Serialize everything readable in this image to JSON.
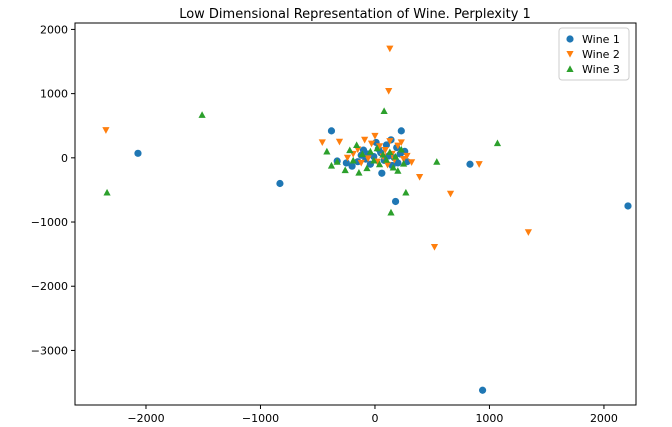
{
  "chart_data": {
    "type": "scatter",
    "title": "Low Dimensional Representation of Wine. Perplexity 1",
    "xlabel": "",
    "ylabel": "",
    "xlim": [
      -2620,
      2280
    ],
    "ylim": [
      -3850,
      2100
    ],
    "xticks": [
      -2000,
      -1000,
      0,
      1000,
      2000
    ],
    "yticks": [
      -3000,
      -2000,
      -1000,
      0,
      1000,
      2000
    ],
    "xtick_labels": [
      "−2000",
      "−1000",
      "0",
      "1000",
      "2000"
    ],
    "ytick_labels": [
      "−3000",
      "−2000",
      "−1000",
      "0",
      "1000",
      "2000"
    ],
    "grid": false,
    "legend": "top-right",
    "series": [
      {
        "name": "Wine 1",
        "color": "#1f77b4",
        "marker": "circle",
        "points": [
          [
            -2070,
            70
          ],
          [
            -830,
            -400
          ],
          [
            -380,
            420
          ],
          [
            -330,
            -50
          ],
          [
            -250,
            -80
          ],
          [
            -200,
            -130
          ],
          [
            -150,
            -60
          ],
          [
            -120,
            40
          ],
          [
            -100,
            120
          ],
          [
            -80,
            -20
          ],
          [
            -60,
            60
          ],
          [
            -40,
            -100
          ],
          [
            -10,
            20
          ],
          [
            10,
            240
          ],
          [
            30,
            140
          ],
          [
            50,
            80
          ],
          [
            60,
            -240
          ],
          [
            80,
            -40
          ],
          [
            100,
            200
          ],
          [
            120,
            30
          ],
          [
            140,
            280
          ],
          [
            150,
            -120
          ],
          [
            170,
            0
          ],
          [
            190,
            160
          ],
          [
            200,
            -80
          ],
          [
            220,
            60
          ],
          [
            230,
            420
          ],
          [
            260,
            100
          ],
          [
            280,
            -60
          ],
          [
            180,
            -680
          ],
          [
            830,
            -100
          ],
          [
            940,
            -3620
          ],
          [
            2210,
            -750
          ]
        ]
      },
      {
        "name": "Wine 2",
        "color": "#ff7f0e",
        "marker": "triangle-down",
        "points": [
          [
            -2350,
            430
          ],
          [
            -460,
            240
          ],
          [
            -310,
            250
          ],
          [
            -240,
            0
          ],
          [
            -190,
            60
          ],
          [
            -150,
            130
          ],
          [
            -120,
            -80
          ],
          [
            -90,
            280
          ],
          [
            -60,
            -10
          ],
          [
            -30,
            220
          ],
          [
            0,
            340
          ],
          [
            20,
            -60
          ],
          [
            40,
            180
          ],
          [
            70,
            20
          ],
          [
            90,
            120
          ],
          [
            110,
            -110
          ],
          [
            130,
            260
          ],
          [
            150,
            60
          ],
          [
            170,
            -30
          ],
          [
            200,
            190
          ],
          [
            230,
            240
          ],
          [
            250,
            -20
          ],
          [
            280,
            30
          ],
          [
            320,
            -70
          ],
          [
            390,
            -300
          ],
          [
            120,
            1040
          ],
          [
            130,
            1700
          ],
          [
            520,
            -1390
          ],
          [
            660,
            -560
          ],
          [
            910,
            -100
          ],
          [
            1340,
            -1160
          ]
        ]
      },
      {
        "name": "Wine 3",
        "color": "#2ca02c",
        "marker": "triangle-up",
        "points": [
          [
            -2340,
            -540
          ],
          [
            -1510,
            670
          ],
          [
            -420,
            100
          ],
          [
            -380,
            -120
          ],
          [
            -330,
            -60
          ],
          [
            -260,
            -190
          ],
          [
            -220,
            120
          ],
          [
            -190,
            -40
          ],
          [
            -160,
            200
          ],
          [
            -140,
            -230
          ],
          [
            -110,
            60
          ],
          [
            -70,
            -160
          ],
          [
            -40,
            100
          ],
          [
            -10,
            -40
          ],
          [
            20,
            150
          ],
          [
            40,
            -100
          ],
          [
            70,
            50
          ],
          [
            80,
            730
          ],
          [
            100,
            -30
          ],
          [
            130,
            90
          ],
          [
            140,
            -850
          ],
          [
            160,
            -150
          ],
          [
            180,
            20
          ],
          [
            200,
            -200
          ],
          [
            230,
            130
          ],
          [
            250,
            -90
          ],
          [
            270,
            -540
          ],
          [
            540,
            -60
          ],
          [
            1070,
            230
          ]
        ]
      }
    ]
  }
}
